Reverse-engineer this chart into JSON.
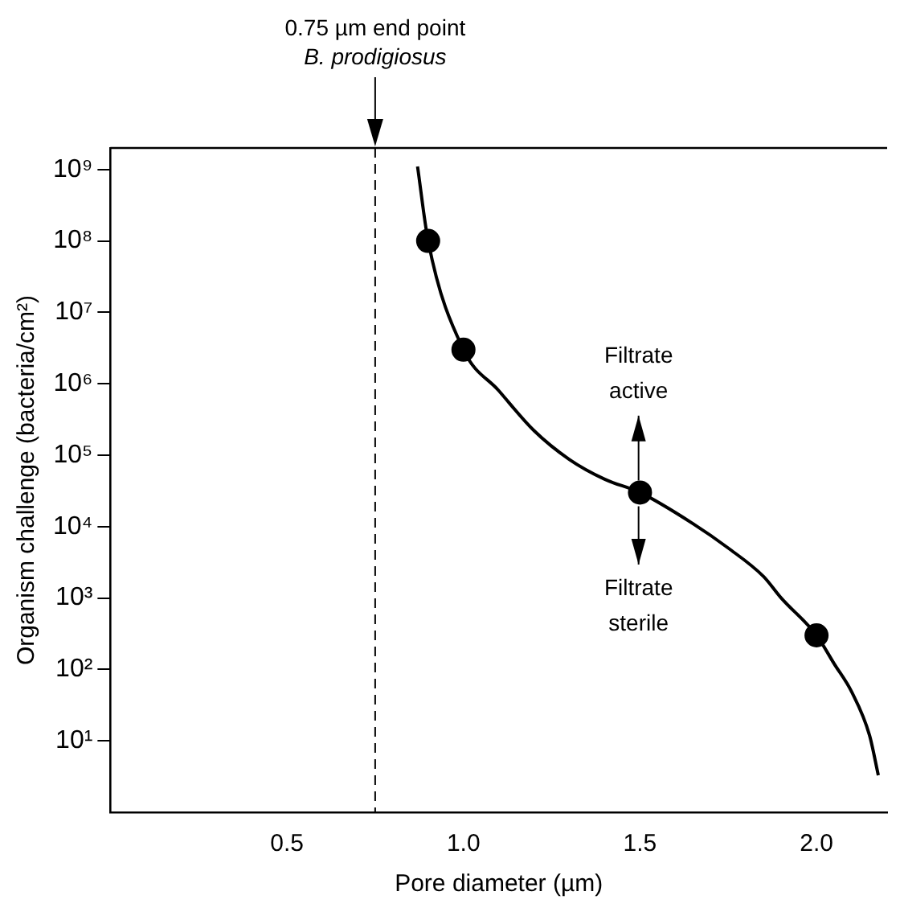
{
  "chart_data": {
    "type": "line",
    "xlabel": "Pore diameter (µm)",
    "ylabel": "Organism challenge (bacteria/cm²)",
    "log": "y",
    "grid": false,
    "legend": false,
    "xlim": [
      0,
      2.2
    ],
    "xticks": [
      0.5,
      {
        "value": 1,
        "label": "1.0"
      },
      1.5,
      {
        "value": 2,
        "label": "2.0"
      }
    ],
    "ylim": [
      1,
      2000000000
    ],
    "yticks": [
      {
        "value": 10,
        "label": "10¹"
      },
      {
        "value": 100,
        "label": "10²"
      },
      {
        "value": 1000,
        "label": "10³"
      },
      {
        "value": 10000,
        "label": "10⁴"
      },
      {
        "value": 100000,
        "label": "10⁵"
      },
      {
        "value": 1000000,
        "label": "10⁶"
      },
      {
        "value": 10000000,
        "label": "10⁷"
      },
      {
        "value": 100000000,
        "label": "10⁸"
      },
      {
        "value": 1000000000,
        "label": "10⁹"
      }
    ],
    "series": [
      {
        "type": "line",
        "color": "#000000",
        "marker": "none",
        "line_style": "solid",
        "x": [
          0.87,
          0.9,
          1.0,
          1.1,
          1.2,
          1.3,
          1.4,
          1.5,
          1.65,
          1.75,
          1.85,
          1.9,
          2.0,
          2.05,
          2.1,
          2.15,
          2.175
        ],
        "values": [
          1100000000,
          100000000,
          3000000,
          800000,
          220000,
          87000,
          46000,
          30000,
          11000,
          5000,
          2000,
          1000,
          300,
          120,
          48,
          12,
          3.3
        ]
      },
      {
        "type": "scatter",
        "color": "#000000",
        "marker": "circle",
        "x": [
          0.9,
          1.0,
          1.5,
          2.0
        ],
        "values": [
          100000000,
          3000000,
          30000,
          300
        ]
      }
    ],
    "ref_lines": [
      {
        "axis": "x",
        "value": 0.75,
        "label": "0.75 µm end point\nB. prodigiosus",
        "line_style": "dashed",
        "color": "#000000"
      }
    ],
    "annotations": [
      "Filtrate\nactive",
      "Filtrate\nsterile"
    ]
  }
}
